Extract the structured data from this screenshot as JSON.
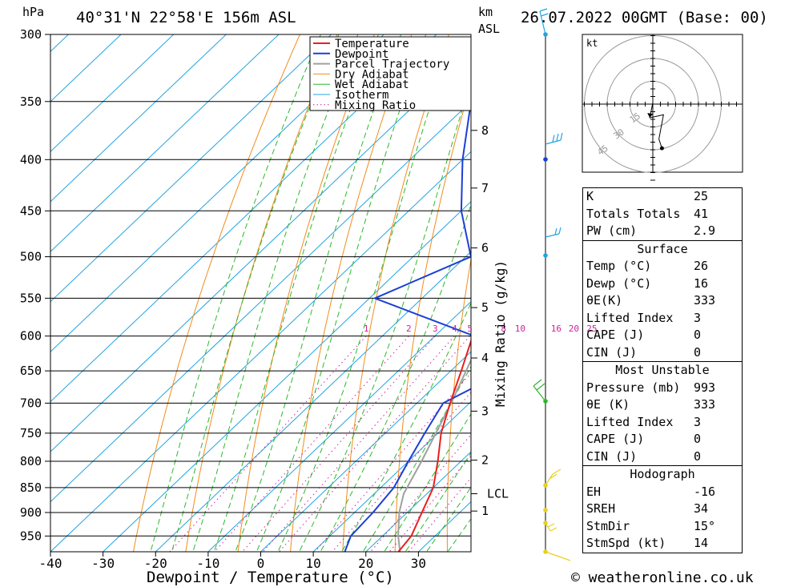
{
  "header": {
    "location": "40°31'N  22°58'E  156m  ASL",
    "datetime": "26.07.2022  00GMT  (Base: 00)",
    "hpa_label": "hPa",
    "km_label": "km",
    "asl_label": "ASL",
    "xlabel": "Dewpoint / Temperature (°C)",
    "mixing_label": "Mixing Ratio (g/kg)",
    "copyright": "© weatheronline.co.uk"
  },
  "chart_data": {
    "type": "line",
    "pressure_levels": [
      300,
      350,
      400,
      450,
      500,
      550,
      600,
      650,
      700,
      750,
      800,
      850,
      900,
      950
    ],
    "x_ticks": [
      -40,
      -30,
      -20,
      -10,
      0,
      10,
      20,
      30
    ],
    "xlim": [
      -40,
      40
    ],
    "ylim_hpa": [
      300,
      985
    ],
    "skew_degC_per_log": 87.0,
    "km_ticks": [
      {
        "label": "8",
        "p": 374
      },
      {
        "label": "7",
        "p": 427
      },
      {
        "label": "6",
        "p": 490
      },
      {
        "label": "5",
        "p": 562
      },
      {
        "label": "4",
        "p": 631
      },
      {
        "label": "3",
        "p": 713
      },
      {
        "label": "2",
        "p": 798
      },
      {
        "label": "LCL",
        "p": 862
      },
      {
        "label": "1",
        "p": 897
      }
    ],
    "mixing_ratios": [
      "1",
      "2",
      "3",
      "4",
      "5",
      "8",
      "10",
      "16",
      "20",
      "25"
    ],
    "mixing_ratio_values": [
      1,
      2,
      3,
      4,
      5,
      8,
      10,
      16,
      20,
      25
    ],
    "legend": [
      "Temperature",
      "Dewpoint",
      "Parcel Trajectory",
      "Dry Adiabat",
      "Wet Adiabat",
      "Isotherm",
      "Mixing Ratio"
    ],
    "colors": {
      "temperature": "#e8201e",
      "dewpoint": "#1c3fd6",
      "parcel": "#a0a0a0",
      "dry_adiabat": "#f28c1c",
      "wet_adiabat": "#2db82d",
      "isotherm": "#22a4e0",
      "mixing_ratio": "#d0209a"
    },
    "series": [
      {
        "name": "Temperature",
        "points": [
          [
            985,
            26.2
          ],
          [
            950,
            25.5
          ],
          [
            900,
            22.8
          ],
          [
            850,
            20.0
          ],
          [
            800,
            15.6
          ],
          [
            750,
            10.6
          ],
          [
            700,
            6.3
          ],
          [
            650,
            2.0
          ],
          [
            600,
            -2.8
          ],
          [
            550,
            -7.0
          ],
          [
            500,
            -12.5
          ],
          [
            450,
            -19.0
          ],
          [
            400,
            -26.5
          ],
          [
            350,
            -35.5
          ],
          [
            300,
            -45.0
          ]
        ]
      },
      {
        "name": "Dewpoint",
        "points": [
          [
            985,
            16.0
          ],
          [
            950,
            14.0
          ],
          [
            900,
            13.5
          ],
          [
            850,
            12.5
          ],
          [
            800,
            10.0
          ],
          [
            750,
            7.5
          ],
          [
            700,
            5.0
          ],
          [
            650,
            10.5
          ],
          [
            600,
            -2.5
          ],
          [
            550,
            -29.0
          ],
          [
            500,
            -19.0
          ],
          [
            450,
            -30.0
          ],
          [
            400,
            -40.0
          ],
          [
            350,
            -50.0
          ],
          [
            300,
            -56.0
          ]
        ]
      },
      {
        "name": "Parcel Trajectory",
        "points": [
          [
            985,
            26.5
          ],
          [
            950,
            23.0
          ],
          [
            900,
            18.5
          ],
          [
            862,
            15.6
          ],
          [
            800,
            12.5
          ],
          [
            700,
            6.5
          ],
          [
            600,
            -1.0
          ],
          [
            500,
            -10.5
          ],
          [
            400,
            -25.0
          ],
          [
            350,
            -34.5
          ],
          [
            300,
            -46.0
          ]
        ]
      }
    ]
  },
  "wind_barbs": {
    "color_high": "#22a4e0",
    "color_mid": "#2db82d",
    "color_low": "#e8d020"
  },
  "hodograph": {
    "unit": "kt",
    "ring_labels": [
      "15",
      "30",
      "45"
    ],
    "trace_kt": [
      [
        0.0,
        1.0
      ],
      [
        -2.0,
        -9.0
      ],
      [
        7.0,
        -7.0
      ],
      [
        4.0,
        -23.0
      ],
      [
        6.0,
        -29.0
      ]
    ]
  },
  "indices": {
    "rows": [
      {
        "label": "K",
        "value": "25"
      },
      {
        "label": "Totals Totals",
        "value": "41"
      },
      {
        "label": "PW (cm)",
        "value": "2.9"
      }
    ]
  },
  "surface": {
    "title": "Surface",
    "rows": [
      {
        "label": "Temp (°C)",
        "value": "26"
      },
      {
        "label": "Dewp (°C)",
        "value": "16"
      },
      {
        "label": "θE(K)",
        "value": "333"
      },
      {
        "label": "Lifted Index",
        "value": "3"
      },
      {
        "label": "CAPE (J)",
        "value": "0"
      },
      {
        "label": "CIN (J)",
        "value": "0"
      }
    ]
  },
  "most_unstable": {
    "title": "Most Unstable",
    "rows": [
      {
        "label": "Pressure (mb)",
        "value": "993"
      },
      {
        "label": "θE (K)",
        "value": "333"
      },
      {
        "label": "Lifted Index",
        "value": "3"
      },
      {
        "label": "CAPE (J)",
        "value": "0"
      },
      {
        "label": "CIN (J)",
        "value": "0"
      }
    ]
  },
  "hodograph_table": {
    "title": "Hodograph",
    "rows": [
      {
        "label": "EH",
        "value": "-16"
      },
      {
        "label": "SREH",
        "value": "34"
      },
      {
        "label": "StmDir",
        "value": "15°"
      },
      {
        "label": "StmSpd (kt)",
        "value": "14"
      }
    ]
  }
}
